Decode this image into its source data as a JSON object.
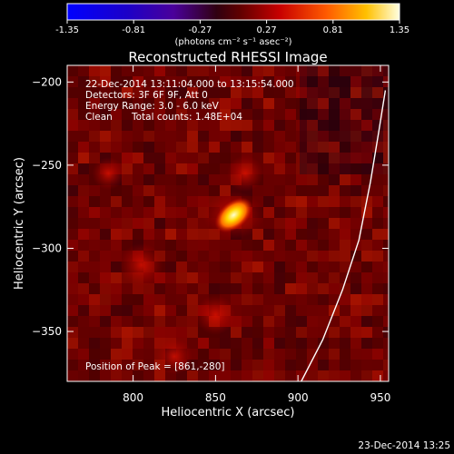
{
  "chart_data": {
    "type": "heatmap",
    "title": "Reconstructed RHESSI Image",
    "xlabel": "Heliocentric X (arcsec)",
    "ylabel": "Heliocentric Y (arcsec)",
    "xlim": [
      760,
      955
    ],
    "ylim": [
      -380,
      -190
    ],
    "x_ticks": [
      800,
      850,
      900,
      950
    ],
    "y_ticks": [
      -200,
      -250,
      -300,
      -350
    ],
    "colorbar": {
      "min": -1.35,
      "max": 1.35,
      "ticks": [
        "-1.35",
        "-0.81",
        "-0.27",
        "0.27",
        "0.81",
        "1.35"
      ],
      "unit_label": "(photons cm⁻² s⁻¹ asec⁻²)"
    },
    "annotations": {
      "time_range": "22-Dec-2014 13:11:04.000 to 13:15:54.000",
      "detectors": "Detectors: 3F 6F 9F, Att 0",
      "energy_range": "Energy Range: 3.0 - 6.0 keV",
      "clean": "Clean",
      "total_counts": "Total counts: 1.48E+04",
      "peak_position": "Position of Peak = [861,-280]"
    },
    "peak": {
      "x": 861,
      "y": -280,
      "value": 1.35
    },
    "sources": [
      {
        "x": 861,
        "y": -280,
        "value": 1.3
      },
      {
        "x": 805,
        "y": -310,
        "value": 0.35
      },
      {
        "x": 868,
        "y": -255,
        "value": 0.25
      },
      {
        "x": 850,
        "y": -340,
        "value": 0.3
      },
      {
        "x": 785,
        "y": -255,
        "value": 0.2
      },
      {
        "x": 825,
        "y": -365,
        "value": 0.25
      }
    ],
    "limb_curve": [
      [
        902,
        -380
      ],
      [
        915,
        -355
      ],
      [
        927,
        -325
      ],
      [
        937,
        -295
      ],
      [
        944,
        -260
      ],
      [
        949,
        -230
      ],
      [
        953,
        -205
      ]
    ],
    "footer_date": "23-Dec-2014 13:25"
  },
  "colors": {
    "background": "#000000",
    "limb_line": "#ffffff"
  }
}
